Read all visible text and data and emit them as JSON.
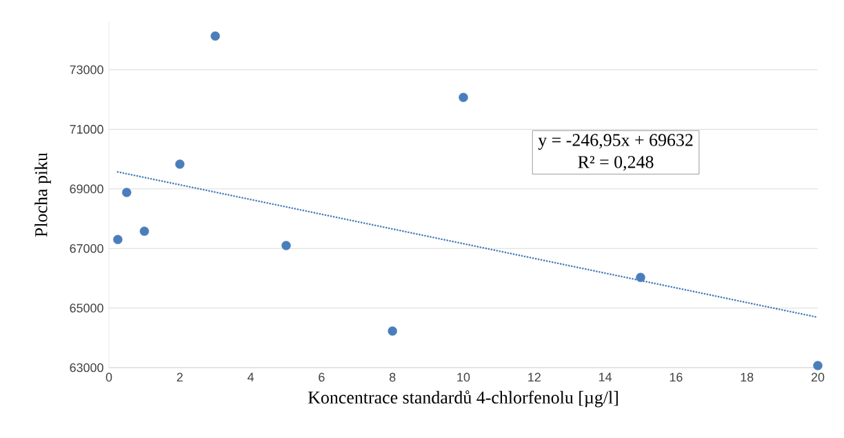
{
  "chart_data": {
    "type": "scatter",
    "xlabel": "Koncentrace standardů 4-chlorfenolu [µg/l]",
    "ylabel": "Plocha piku",
    "series": [
      {
        "color": "#4a7ebb",
        "x": [
          0.25,
          0.5,
          1,
          2,
          3,
          5,
          8,
          10,
          15,
          20
        ],
        "values": [
          67300,
          68880,
          67580,
          69830,
          74130,
          67100,
          64230,
          72070,
          66030,
          63070
        ]
      },
      {
        "type": "line",
        "marker": "none",
        "color": "#4a7ebb",
        "line_style": "dotted",
        "x": [
          0.25,
          20
        ],
        "values": [
          69570,
          64690
        ]
      }
    ],
    "marker": "circle",
    "grid": "y",
    "xlim": [
      0,
      20
    ],
    "xticks": [
      0,
      2,
      4,
      6,
      8,
      10,
      12,
      14,
      16,
      18,
      20
    ],
    "ylim": [
      63000,
      74600
    ],
    "yticks": [
      63000,
      65000,
      67000,
      69000,
      71000,
      73000
    ],
    "annotations": [
      "y = -246,95x + 69632",
      "R² = 0,248"
    ]
  }
}
